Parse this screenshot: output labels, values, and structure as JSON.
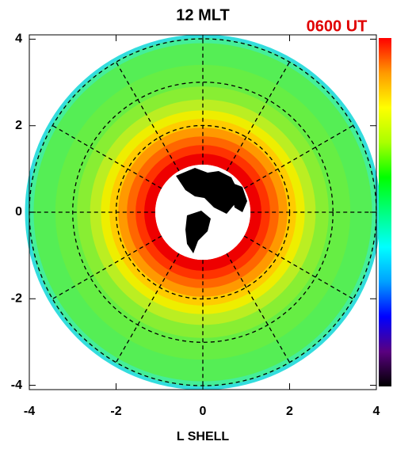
{
  "chart_data": {
    "type": "polar-rings",
    "title": "12 MLT",
    "time_label": "0600 UT",
    "xlabel": "L SHELL",
    "xlim": [
      -4,
      4
    ],
    "ylim": [
      -4.1,
      4.1
    ],
    "xticks": [
      -4,
      -2,
      0,
      2,
      4
    ],
    "yticks": [
      -4,
      -2,
      0,
      2,
      4
    ],
    "earth_radius": 1.1,
    "grid_circles": [
      2,
      3,
      4
    ],
    "spokes": 12,
    "rings": [
      {
        "r": 4.1,
        "color": "#33dddd"
      },
      {
        "r": 4.02,
        "color": "#44ee99"
      },
      {
        "r": 3.9,
        "color": "#55ee55"
      },
      {
        "r": 3.4,
        "color": "#66ee44"
      },
      {
        "r": 2.9,
        "color": "#88ee33"
      },
      {
        "r": 2.6,
        "color": "#bbee22"
      },
      {
        "r": 2.35,
        "color": "#eeee00"
      },
      {
        "r": 2.15,
        "color": "#ffcc00"
      },
      {
        "r": 1.95,
        "color": "#ff9900"
      },
      {
        "r": 1.75,
        "color": "#ff6600"
      },
      {
        "r": 1.55,
        "color": "#ff3300"
      },
      {
        "r": 1.35,
        "color": "#ee0000"
      }
    ],
    "colorbar": [
      "#000000",
      "#5a0080",
      "#0000ff",
      "#00a0ff",
      "#00ffff",
      "#00ff80",
      "#00ff00",
      "#aaff00",
      "#ffff00",
      "#ff9900",
      "#ff0000"
    ]
  }
}
